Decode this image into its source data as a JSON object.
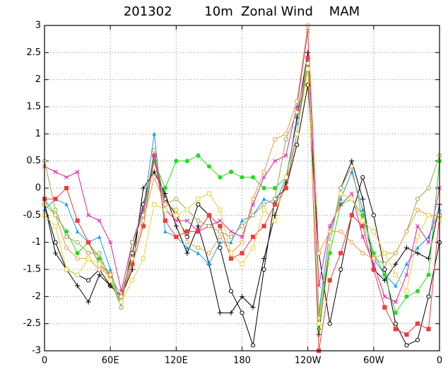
{
  "chart_data": {
    "type": "line",
    "title": "201302        10m  Zonal Wind    MAM",
    "x": [
      0,
      10,
      20,
      30,
      40,
      50,
      60,
      70,
      80,
      90,
      100,
      110,
      120,
      130,
      140,
      150,
      160,
      170,
      180,
      190,
      200,
      210,
      220,
      230,
      240,
      250,
      260,
      270,
      280,
      290,
      300,
      310,
      320,
      330,
      340,
      350,
      360
    ],
    "xlim": [
      0,
      360
    ],
    "xticks": [
      0,
      {
        "value": 60,
        "label": "60E"
      },
      {
        "value": 120,
        "label": "120E"
      },
      180,
      {
        "value": 240,
        "label": "120W"
      },
      {
        "value": 300,
        "label": "60W"
      },
      {
        "value": 360,
        "label": "0"
      }
    ],
    "ylim": [
      -3,
      3
    ],
    "yticks": [
      -3,
      -2.5,
      -2,
      -1.5,
      -1,
      -0.5,
      0,
      0.5,
      1,
      1.5,
      2,
      2.5,
      3
    ],
    "grid": true,
    "series": [
      {
        "color": "#000000",
        "marker": "circle-open",
        "values": [
          -0.3,
          -1,
          -1.5,
          -1.6,
          -1.7,
          -1.5,
          -1.8,
          -2.0,
          -1.2,
          -0.3,
          0.5,
          -0.2,
          -0.5,
          -0.9,
          -0.3,
          -0.5,
          -1.1,
          -1.9,
          -2.3,
          -2.9,
          -1.5,
          -0.2,
          0,
          0.8,
          1.9,
          -1.2,
          -2.5,
          -1.5,
          -0.5,
          0.2,
          -0.5,
          -1.5,
          -2.5,
          -2.9,
          -2.8,
          -2.0,
          -1.0
        ]
      },
      {
        "color": "#000000",
        "marker": "plus",
        "values": [
          -0.3,
          -1.2,
          -1.5,
          -1.8,
          -2.1,
          -1.6,
          -1.8,
          -2.0,
          -1.5,
          0,
          0.3,
          -0.1,
          -0.7,
          -1.2,
          -0.7,
          -1.4,
          -2.3,
          -2.3,
          -2.0,
          -2.2,
          -1.3,
          -0.5,
          0.1,
          1.3,
          2.5,
          -2.7,
          -1.0,
          0.0,
          0.5,
          -0.2,
          -1.5,
          -1.7,
          -1.4,
          -1.1,
          -1.2,
          -1.3,
          -0.3
        ]
      },
      {
        "color": "#1e9bea",
        "marker": "triangle",
        "values": [
          -0.4,
          -0.2,
          -0.3,
          -0.8,
          -1.0,
          -0.9,
          -1.5,
          -2.2,
          -1.0,
          -0.4,
          1.0,
          -0.8,
          -0.9,
          -1.1,
          -1.2,
          -1.4,
          -1.0,
          -1.0,
          -0.6,
          -0.5,
          -0.2,
          -0.3,
          0.2,
          1.2,
          2.3,
          -2.3,
          -0.8,
          -0.2,
          0.3,
          -0.4,
          -1.3,
          -1.6,
          -1.8,
          -1.4,
          -1.1,
          -0.9,
          -0.4
        ]
      },
      {
        "color": "#22dd22",
        "marker": "circle",
        "values": [
          -0.2,
          -0.5,
          -0.8,
          -1.2,
          -1.0,
          -1.3,
          -1.6,
          -2.2,
          -1.0,
          -0.5,
          0.5,
          0.0,
          0.5,
          0.5,
          0.6,
          0.4,
          0.2,
          0.3,
          0.2,
          0.2,
          0.0,
          0.0,
          0.2,
          1.0,
          2.3,
          -2.6,
          -1.2,
          -0.3,
          -0.2,
          -0.5,
          -1.2,
          -1.6,
          -2.3,
          -2.0,
          -1.9,
          -1.6,
          0.5
        ]
      },
      {
        "color": "#f03c3c",
        "marker": "square",
        "values": [
          -0.2,
          -0.2,
          0.0,
          -0.6,
          -1.0,
          -1.4,
          -1.6,
          -2.0,
          -1.4,
          -0.7,
          0.6,
          -0.6,
          -0.9,
          -0.8,
          -0.8,
          -0.5,
          -0.7,
          -1.3,
          -1.2,
          -0.9,
          -0.7,
          -0.3,
          0.0,
          1.0,
          2.4,
          -3.0,
          -1.7,
          -1.2,
          -0.5,
          -0.7,
          -1.5,
          -2.2,
          -2.6,
          -2.7,
          -2.5,
          -2.6,
          -0.5
        ]
      },
      {
        "color": "#e020a0",
        "marker": "x",
        "values": [
          0.4,
          0.3,
          0.2,
          0.3,
          -0.5,
          -0.6,
          -1.0,
          -1.9,
          -1.0,
          -0.4,
          0.6,
          -0.4,
          -0.6,
          -0.6,
          -0.8,
          -0.7,
          -0.6,
          -0.8,
          -0.9,
          -0.3,
          0.2,
          0.5,
          0.6,
          1.5,
          2.9,
          -1.8,
          -0.7,
          -0.3,
          -0.1,
          -0.9,
          -1.4,
          -2.0,
          -2.1,
          -1.6,
          -0.7,
          -1.0,
          0.0
        ]
      },
      {
        "color": "#a0a050",
        "marker": "circle-open",
        "values": [
          0.5,
          -0.4,
          -0.9,
          -1.0,
          -1.2,
          -1.2,
          -1.7,
          -2.2,
          -1.0,
          -0.5,
          0.7,
          -0.3,
          -0.2,
          -0.4,
          -0.6,
          -0.7,
          -0.8,
          -0.9,
          -0.7,
          -0.5,
          -0.3,
          -0.2,
          0.9,
          1.4,
          2.3,
          -2.4,
          -1.0,
          0.0,
          0.4,
          -0.6,
          -1.3,
          -1.4,
          -1.2,
          -0.8,
          -0.2,
          0.0,
          0.6
        ]
      },
      {
        "color": "#e0a040",
        "marker": "circle-open",
        "values": [
          -0.3,
          -0.5,
          -1.1,
          -1.3,
          -1.3,
          -1.5,
          -1.6,
          -2.0,
          -1.3,
          -0.6,
          0.2,
          -0.3,
          -0.4,
          -1.0,
          -1.1,
          -1.2,
          -0.9,
          -1.2,
          -1.0,
          -0.2,
          0.3,
          0.9,
          1.0,
          1.6,
          3.0,
          -1.2,
          -0.8,
          -0.8,
          -1.0,
          -1.2,
          -1.3,
          -1.2,
          -1.2,
          -0.8,
          -0.4,
          -0.5,
          -0.5
        ]
      },
      {
        "color": "#e6d040",
        "marker": "square-open",
        "values": [
          -0.5,
          -0.7,
          -1.5,
          -1.6,
          -1.3,
          -1.4,
          -1.7,
          -2.1,
          -1.7,
          -1.3,
          -0.3,
          -0.4,
          -0.5,
          -0.4,
          -0.2,
          -0.1,
          -0.4,
          -1.2,
          -1.4,
          -1.1,
          -0.4,
          -0.6,
          0.2,
          1.0,
          2.2,
          -2.5,
          -1.0,
          -0.1,
          -0.2,
          -0.6,
          -0.8,
          -1.2,
          -1.6,
          -1.9,
          -0.9,
          -0.5,
          -0.6
        ]
      }
    ]
  }
}
